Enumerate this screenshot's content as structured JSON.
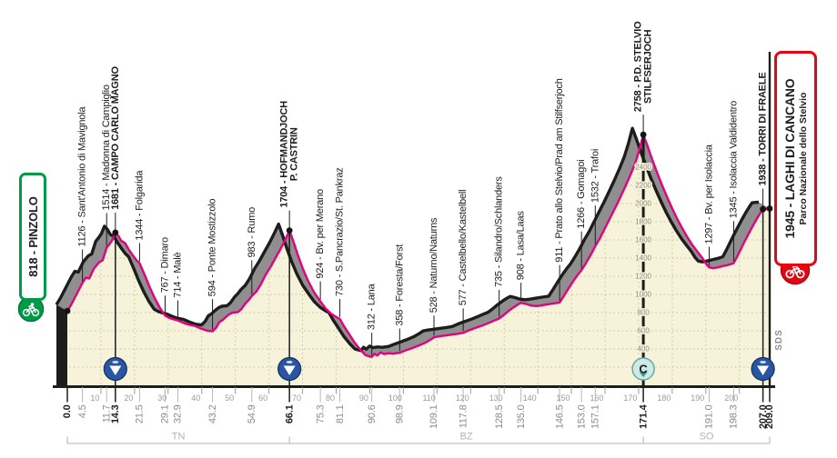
{
  "chart_data": {
    "type": "area",
    "x_unit": "km",
    "y_unit": "m",
    "xlim": [
      0,
      209
    ],
    "ylim": [
      0,
      2800
    ],
    "grid": true,
    "start": {
      "label": "818 - PINZOLO",
      "km": 0,
      "elev": 818,
      "km_label": "0.0",
      "icon": "cyclist-icon"
    },
    "finish": {
      "label": "1945 - LAGHI DI CANCANO",
      "sublabel": "Parco Nazionale dello Stelvio",
      "km": 209,
      "elev": 1945,
      "km_label": "209.0",
      "icon": "cyclist-icon"
    },
    "route_note": "SDS",
    "waypoints": [
      {
        "km": 4.5,
        "elev": 1126,
        "label": "1126 - Sant'Antonio di Mavignola",
        "km_label": "4.5",
        "bold": false
      },
      {
        "km": 11.7,
        "elev": 1514,
        "label": "1514 - Madonna di Campiglio",
        "km_label": "11.7",
        "bold": false
      },
      {
        "km": 14.3,
        "elev": 1681,
        "label": "1681 - CAMPO CARLO MAGNO",
        "km_label": "14.3",
        "bold": true,
        "dot": true,
        "vline": true
      },
      {
        "km": 21.5,
        "elev": 1344,
        "label": "1344 - Folgarida",
        "km_label": "21.5",
        "bold": false
      },
      {
        "km": 29.1,
        "elev": 767,
        "label": "767 - Dimaro",
        "km_label": "29.1",
        "bold": false
      },
      {
        "km": 32.9,
        "elev": 714,
        "label": "714 - Malè",
        "km_label": "32.9",
        "bold": false
      },
      {
        "km": 43.2,
        "elev": 594,
        "label": "594 - Ponte Mostizzolo",
        "km_label": "43.2",
        "bold": false
      },
      {
        "km": 54.9,
        "elev": 983,
        "label": "983 - Rumo",
        "km_label": "54.9",
        "bold": false
      },
      {
        "km": 66.1,
        "elev": 1704,
        "label": "1704 - HOFMANDJOCH",
        "label2": "P. CASTRIN",
        "km_label": "66.1",
        "bold": true,
        "dot": true,
        "vline": true
      },
      {
        "km": 75.3,
        "elev": 924,
        "label": "924 - Bv. per Merano",
        "km_label": "75.3",
        "bold": false
      },
      {
        "km": 81.1,
        "elev": 730,
        "label": "730 - S.Pancrazio/St. Pankraz",
        "km_label": "81.1",
        "bold": false
      },
      {
        "km": 90.6,
        "elev": 312,
        "label": "312 - Lana",
        "km_label": "90.6",
        "bold": false
      },
      {
        "km": 98.9,
        "elev": 358,
        "label": "358 - Foresta/Forst",
        "km_label": "98.9",
        "bold": false
      },
      {
        "km": 109.1,
        "elev": 528,
        "label": "528 - Naturno/Naturns",
        "km_label": "109.1",
        "bold": false
      },
      {
        "km": 117.8,
        "elev": 577,
        "label": "577 - Castelbello/Kastelbell",
        "km_label": "117.8",
        "bold": false
      },
      {
        "km": 128.5,
        "elev": 735,
        "label": "735 - Silandro/Schlanders",
        "km_label": "128.5",
        "bold": false
      },
      {
        "km": 135.0,
        "elev": 908,
        "label": "908 - Lasa/Laas",
        "km_label": "135.0",
        "bold": false
      },
      {
        "km": 146.5,
        "elev": 911,
        "label": "911 - Prato allo Stelvio/Prad am Stilfserjoch",
        "km_label": "146.5",
        "bold": false
      },
      {
        "km": 153.0,
        "elev": 1266,
        "label": "1266 - Gomagoi",
        "km_label": "153.0",
        "bold": false
      },
      {
        "km": 157.1,
        "elev": 1532,
        "label": "1532 - Trafoi",
        "km_label": "157.1",
        "bold": false
      },
      {
        "km": 171.4,
        "elev": 2758,
        "label": "2758 - P.D. STELVIO",
        "label2": "STILFSERJOCH",
        "km_label": "171.4",
        "bold": true,
        "dot": true,
        "vline": true
      },
      {
        "km": 191.0,
        "elev": 1297,
        "label": "1297 - Bv. per Isolaccia",
        "km_label": "191.0",
        "bold": false
      },
      {
        "km": 198.3,
        "elev": 1345,
        "label": "1345 - Isolaccia Valdidentro",
        "km_label": "198.3",
        "bold": false
      },
      {
        "km": 207.0,
        "elev": 1938,
        "label": "1938 - TORRI DI FRAELE",
        "km_label": "207.0",
        "bold": true,
        "dot": true,
        "vline": true
      }
    ],
    "markers": [
      {
        "km": 14.3,
        "type": "blue-triangle",
        "icon": "feed-zone-icon"
      },
      {
        "km": 66.1,
        "type": "blue-triangle",
        "icon": "feed-zone-icon"
      },
      {
        "km": 171.4,
        "type": "cima-coppi",
        "glyph": "C",
        "icon": "cima-coppi-icon"
      },
      {
        "km": 207.0,
        "type": "blue-triangle",
        "icon": "feed-zone-icon"
      }
    ],
    "x_ticks": [
      10,
      20,
      30,
      40,
      50,
      60,
      70,
      80,
      90,
      100,
      110,
      120,
      130,
      140,
      150,
      160,
      170,
      180,
      190,
      200
    ],
    "elevation_scale_labels": [
      400,
      600,
      800,
      1000,
      1200,
      1400,
      1600,
      1800,
      2000,
      2200,
      2400
    ],
    "provinces": [
      {
        "label": "TN",
        "from_km": 0,
        "to_km": 66.1
      },
      {
        "label": "BZ",
        "from_km": 66.1,
        "to_km": 171.4
      },
      {
        "label": "SO",
        "from_km": 171.4,
        "to_km": 209
      }
    ],
    "profile": [
      [
        0,
        818
      ],
      [
        1.2,
        890
      ],
      [
        3,
        1020
      ],
      [
        4.5,
        1126
      ],
      [
        5.5,
        1185
      ],
      [
        6.5,
        1175
      ],
      [
        8,
        1290
      ],
      [
        9.5,
        1355
      ],
      [
        10.5,
        1375
      ],
      [
        11.7,
        1514
      ],
      [
        12.6,
        1555
      ],
      [
        13.4,
        1600
      ],
      [
        14.3,
        1681
      ],
      [
        15.2,
        1645
      ],
      [
        16,
        1592
      ],
      [
        17.2,
        1565
      ],
      [
        18.2,
        1500
      ],
      [
        19.5,
        1430
      ],
      [
        20.5,
        1380
      ],
      [
        21.5,
        1344
      ],
      [
        23,
        1215
      ],
      [
        24.5,
        1080
      ],
      [
        26,
        960
      ],
      [
        27.5,
        855
      ],
      [
        29.1,
        767
      ],
      [
        30.3,
        742
      ],
      [
        31.5,
        728
      ],
      [
        32.9,
        714
      ],
      [
        34.5,
        688
      ],
      [
        36,
        668
      ],
      [
        37.8,
        656
      ],
      [
        39.5,
        628
      ],
      [
        41.5,
        602
      ],
      [
        43.2,
        594
      ],
      [
        44.3,
        635
      ],
      [
        45.2,
        695
      ],
      [
        46.2,
        718
      ],
      [
        47.2,
        752
      ],
      [
        48.2,
        782
      ],
      [
        49.2,
        800
      ],
      [
        50.8,
        806
      ],
      [
        51.8,
        838
      ],
      [
        53,
        902
      ],
      [
        54,
        940
      ],
      [
        54.9,
        983
      ],
      [
        56.2,
        1030
      ],
      [
        57.5,
        1105
      ],
      [
        59,
        1215
      ],
      [
        60.5,
        1305
      ],
      [
        62,
        1405
      ],
      [
        63.5,
        1505
      ],
      [
        65,
        1615
      ],
      [
        66.1,
        1704
      ],
      [
        67.3,
        1580
      ],
      [
        68.5,
        1445
      ],
      [
        70,
        1290
      ],
      [
        71.5,
        1160
      ],
      [
        73.3,
        1030
      ],
      [
        75.3,
        924
      ],
      [
        76.8,
        848
      ],
      [
        78.5,
        788
      ],
      [
        80,
        752
      ],
      [
        81.1,
        730
      ],
      [
        82.3,
        652
      ],
      [
        83.8,
        568
      ],
      [
        85.5,
        470
      ],
      [
        87.2,
        392
      ],
      [
        88.8,
        330
      ],
      [
        90.6,
        312
      ],
      [
        91.4,
        348
      ],
      [
        92.2,
        328
      ],
      [
        93.2,
        362
      ],
      [
        94.2,
        344
      ],
      [
        95.5,
        352
      ],
      [
        97,
        348
      ],
      [
        98.9,
        358
      ],
      [
        100.5,
        382
      ],
      [
        102.5,
        408
      ],
      [
        104.5,
        436
      ],
      [
        106.5,
        468
      ],
      [
        108,
        500
      ],
      [
        109.1,
        528
      ],
      [
        110.5,
        538
      ],
      [
        112.5,
        548
      ],
      [
        114.5,
        558
      ],
      [
        116,
        566
      ],
      [
        117.8,
        577
      ],
      [
        119.5,
        605
      ],
      [
        121.5,
        632
      ],
      [
        123.5,
        658
      ],
      [
        125.5,
        688
      ],
      [
        127,
        712
      ],
      [
        128.5,
        735
      ],
      [
        129.8,
        772
      ],
      [
        131.3,
        818
      ],
      [
        132.8,
        858
      ],
      [
        134,
        888
      ],
      [
        135,
        908
      ],
      [
        136.5,
        895
      ],
      [
        138,
        878
      ],
      [
        139.5,
        872
      ],
      [
        141,
        878
      ],
      [
        142.5,
        888
      ],
      [
        144.5,
        900
      ],
      [
        146.5,
        911
      ],
      [
        147.8,
        985
      ],
      [
        149.3,
        1075
      ],
      [
        150.8,
        1160
      ],
      [
        152,
        1222
      ],
      [
        153,
        1266
      ],
      [
        154.2,
        1338
      ],
      [
        155.5,
        1420
      ],
      [
        156.4,
        1480
      ],
      [
        157.1,
        1532
      ],
      [
        158.5,
        1620
      ],
      [
        160,
        1730
      ],
      [
        161.5,
        1840
      ],
      [
        163,
        1950
      ],
      [
        164.5,
        2065
      ],
      [
        166,
        2185
      ],
      [
        167.5,
        2310
      ],
      [
        169,
        2445
      ],
      [
        170.2,
        2590
      ],
      [
        171.4,
        2758
      ],
      [
        172.6,
        2640
      ],
      [
        174,
        2490
      ],
      [
        175.5,
        2340
      ],
      [
        177,
        2200
      ],
      [
        178.5,
        2070
      ],
      [
        180,
        1945
      ],
      [
        181.5,
        1830
      ],
      [
        183,
        1725
      ],
      [
        184.5,
        1630
      ],
      [
        186,
        1545
      ],
      [
        187.5,
        1470
      ],
      [
        189,
        1400
      ],
      [
        190,
        1340
      ],
      [
        191,
        1297
      ],
      [
        192.3,
        1288
      ],
      [
        193.6,
        1298
      ],
      [
        195.5,
        1315
      ],
      [
        197,
        1328
      ],
      [
        198.3,
        1345
      ],
      [
        199.3,
        1415
      ],
      [
        200.3,
        1490
      ],
      [
        201.5,
        1580
      ],
      [
        202.8,
        1672
      ],
      [
        204,
        1755
      ],
      [
        205.2,
        1835
      ],
      [
        206.2,
        1895
      ],
      [
        207,
        1938
      ],
      [
        207.8,
        1942
      ],
      [
        209,
        1945
      ]
    ],
    "colors": {
      "profile_line": "#e5007d",
      "outline": "#1d1d1b",
      "band": "#8f8f8f",
      "fill": "#f6f3da",
      "grid": "#c9c3a0",
      "axis": "#9b9b9b",
      "muted_text": "#8c8c8c",
      "province_text": "#b3b3b3",
      "start_green": "#009a49",
      "finish_red": "#e30613",
      "marker_blue": "#2a55a3",
      "marker_blue_dark": "#10305f",
      "cima_coppi_fill": "#cdeae6",
      "cima_coppi_border": "#68aaa2"
    }
  }
}
